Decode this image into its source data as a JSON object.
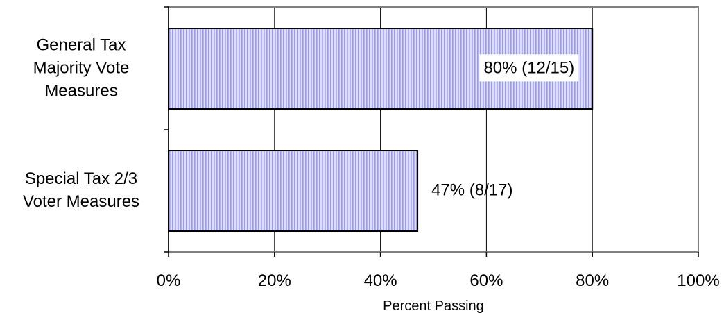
{
  "chart_data": {
    "type": "bar",
    "orientation": "horizontal",
    "categories": [
      [
        "General Tax",
        "Majority Vote",
        "Measures"
      ],
      [
        "Special Tax 2/3",
        "Voter Measures"
      ]
    ],
    "values": [
      80,
      47
    ],
    "data_labels": [
      "80% (12/15)",
      "47% (8/17)"
    ],
    "xlabel": "Percent Passing",
    "xlim": [
      0,
      100
    ],
    "xticks": [
      "0%",
      "20%",
      "40%",
      "60%",
      "80%",
      "100%"
    ],
    "grid": "vertical",
    "legend": "none",
    "colors": {
      "bar_fill": "#dcdcf6",
      "bar_stripe": "#9a9ae0",
      "bar_border": "#000000",
      "gridline": "#000000",
      "plot_border": "#808080"
    }
  }
}
